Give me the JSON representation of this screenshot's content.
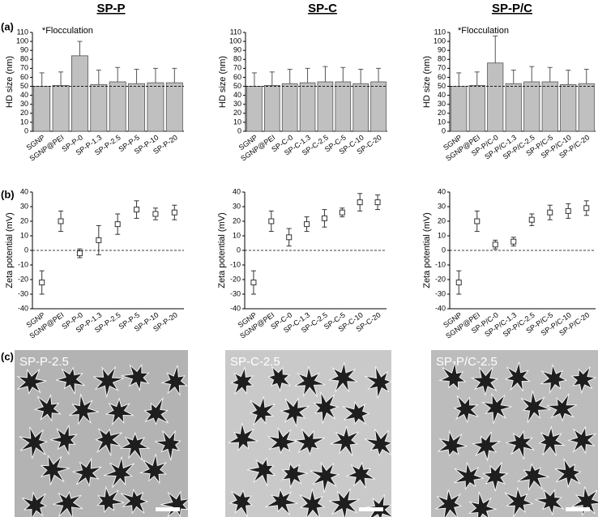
{
  "columns": [
    "SP-P",
    "SP-C",
    "SP-P/C"
  ],
  "panel_labels": [
    "(a)",
    "(b)",
    "(c)"
  ],
  "micrographs": [
    "SP-P-2.5",
    "SP-C-2.5",
    "SP-P/C-2.5"
  ],
  "chart_data": [
    {
      "type": "bar",
      "ylabel": "HD size (nm)",
      "annotation": "*Flocculation",
      "categories": [
        "SGNP",
        "SGNP@PEI",
        "SP-P-0",
        "SP-P-1.3",
        "SP-P-2.5",
        "SP-P-5",
        "SP-P-10",
        "SP-P-20"
      ],
      "values": [
        50,
        51,
        84,
        52,
        55,
        53,
        54,
        54
      ],
      "errors": [
        15,
        15,
        16,
        16,
        16,
        16,
        16,
        16
      ],
      "color": "#c0c0c0",
      "ylim": [
        0,
        110
      ],
      "yticks": [
        0,
        10,
        20,
        30,
        40,
        50,
        60,
        70,
        80,
        90,
        100,
        110
      ],
      "reference_line": 50
    },
    {
      "type": "bar",
      "ylabel": "HD size (nm)",
      "categories": [
        "SGNP",
        "SGNP@PEI",
        "SP-C-0",
        "SP-C-1.3",
        "SP-C-2.5",
        "SP-C-5",
        "SP-C-10",
        "SP-C-20"
      ],
      "values": [
        50,
        51,
        53,
        54,
        55,
        55,
        53,
        55
      ],
      "errors": [
        15,
        15,
        16,
        16,
        17,
        16,
        16,
        15
      ],
      "color": "#c0c0c0",
      "ylim": [
        0,
        110
      ],
      "yticks": [
        0,
        10,
        20,
        30,
        40,
        50,
        60,
        70,
        80,
        90,
        100,
        110
      ],
      "reference_line": 50
    },
    {
      "type": "bar",
      "ylabel": "HD size (nm)",
      "annotation": "*Flocculation",
      "categories": [
        "SGNP",
        "SGNP@PEI",
        "SP-P/C-0",
        "SP-P/C-1.3",
        "SP-P/C-2.5",
        "SP-P/C-5",
        "SP-P/C-10",
        "SP-P/C-20"
      ],
      "values": [
        50,
        51,
        76,
        53,
        55,
        55,
        52,
        53
      ],
      "errors": [
        15,
        15,
        30,
        15,
        17,
        16,
        16,
        16
      ],
      "color": "#c0c0c0",
      "ylim": [
        0,
        110
      ],
      "yticks": [
        0,
        10,
        20,
        30,
        40,
        50,
        60,
        70,
        80,
        90,
        100,
        110
      ],
      "reference_line": 50
    },
    {
      "type": "scatter",
      "ylabel": "Zeta potential (mV)",
      "categories": [
        "SGNP",
        "SGNP@PEI",
        "SP-P-0",
        "SP-P-1.3",
        "SP-P-2.5",
        "SP-P-5",
        "SP-P-10",
        "SP-P-20"
      ],
      "values": [
        -22,
        20,
        -2,
        7,
        18,
        28,
        25,
        26
      ],
      "errors": [
        8,
        7,
        3,
        10,
        7,
        6,
        4,
        5
      ],
      "color": "#333333",
      "ylim": [
        -40,
        40
      ],
      "yticks": [
        -40,
        -30,
        -20,
        -10,
        0,
        10,
        20,
        30,
        40
      ],
      "reference_line": 0
    },
    {
      "type": "scatter",
      "ylabel": "Zeta potential (mV)",
      "categories": [
        "SGNP",
        "SGNP@PEI",
        "SP-C-0",
        "SP-C-1.3",
        "SP-C-2.5",
        "SP-C-5",
        "SP-C-10",
        "SP-C-20"
      ],
      "values": [
        -22,
        20,
        9,
        18,
        22,
        26,
        33,
        33
      ],
      "errors": [
        8,
        7,
        6,
        5,
        6,
        3,
        6,
        5
      ],
      "color": "#333333",
      "ylim": [
        -40,
        40
      ],
      "yticks": [
        -40,
        -30,
        -20,
        -10,
        0,
        10,
        20,
        30,
        40
      ],
      "reference_line": 0
    },
    {
      "type": "scatter",
      "ylabel": "Zeta potential (mV)",
      "categories": [
        "SGNP",
        "SGNP@PEI",
        "SP-P/C-0",
        "SP-P/C-1.3",
        "SP-P/C-2.5",
        "SP-P/C-5",
        "SP-P/C-10",
        "SP-P/C-20"
      ],
      "values": [
        -22,
        20,
        4,
        6,
        21,
        26,
        27,
        29
      ],
      "errors": [
        8,
        7,
        3,
        3,
        4,
        5,
        5,
        5
      ],
      "color": "#333333",
      "ylim": [
        -40,
        40
      ],
      "yticks": [
        -40,
        -30,
        -20,
        -10,
        0,
        10,
        20,
        30,
        40
      ],
      "reference_line": 0
    }
  ]
}
